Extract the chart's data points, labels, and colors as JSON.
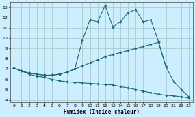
{
  "title": "",
  "xlabel": "Humidex (Indice chaleur)",
  "bg_color": "#cceeff",
  "grid_color": "#aacccc",
  "line_color": "#1a6b6b",
  "xlim": [
    -0.5,
    23.5
  ],
  "ylim": [
    3.8,
    13.5
  ],
  "xticks": [
    0,
    1,
    2,
    3,
    4,
    5,
    6,
    7,
    8,
    9,
    10,
    11,
    12,
    13,
    14,
    15,
    16,
    17,
    18,
    19,
    20,
    21,
    22,
    23
  ],
  "yticks": [
    4,
    5,
    6,
    7,
    8,
    9,
    10,
    11,
    12,
    13
  ],
  "curve1_x": [
    0,
    1,
    2,
    3,
    4,
    5,
    6,
    7,
    8,
    9,
    10,
    11,
    12,
    13,
    14,
    15,
    16,
    17,
    18,
    19,
    20,
    21,
    22,
    23
  ],
  "curve1_y": [
    7.1,
    6.8,
    6.5,
    6.3,
    6.2,
    6.0,
    5.85,
    5.75,
    5.7,
    5.65,
    5.6,
    5.55,
    5.5,
    5.45,
    5.3,
    5.15,
    5.0,
    4.85,
    4.7,
    4.55,
    4.45,
    4.4,
    4.3,
    4.2
  ],
  "curve2_x": [
    0,
    1,
    2,
    3,
    4,
    5,
    6,
    7,
    8,
    9,
    10,
    11,
    12,
    13,
    14,
    15,
    16,
    17,
    18,
    19,
    20,
    21,
    22,
    23
  ],
  "curve2_y": [
    7.1,
    6.8,
    6.6,
    6.5,
    6.4,
    6.4,
    6.5,
    6.7,
    7.0,
    7.3,
    7.6,
    7.9,
    8.2,
    8.4,
    8.6,
    8.8,
    9.0,
    9.2,
    9.4,
    9.6,
    7.2,
    5.8,
    5.0,
    4.3
  ],
  "curve3_x": [
    0,
    1,
    2,
    3,
    4,
    5,
    6,
    7,
    8,
    9,
    10,
    11,
    12,
    13,
    14,
    15,
    16,
    17,
    18,
    19,
    20
  ],
  "curve3_y": [
    7.1,
    6.8,
    6.6,
    6.5,
    6.4,
    6.4,
    6.5,
    6.7,
    7.0,
    9.8,
    11.8,
    11.6,
    13.2,
    11.1,
    11.6,
    12.5,
    12.8,
    11.6,
    11.8,
    9.7,
    7.2
  ]
}
